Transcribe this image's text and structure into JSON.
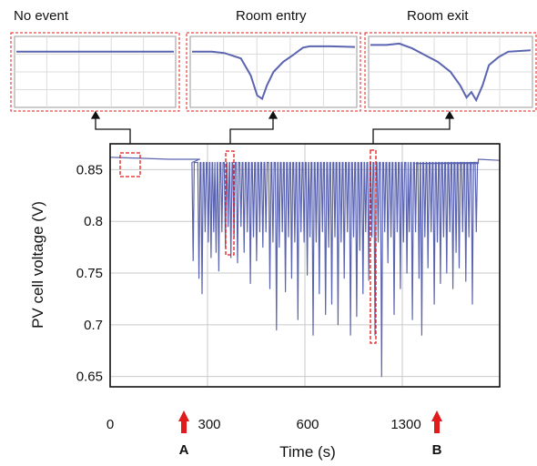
{
  "chart_data": {
    "type": "line",
    "ylabel": "PV cell voltage (V)",
    "xlabel": "Time (s)",
    "ylim": [
      0.64,
      0.875
    ],
    "y_ticks": [
      0.85,
      0.8,
      0.75,
      0.7,
      0.65
    ],
    "x_tick_labels": [
      "0",
      "300",
      "600",
      "1300"
    ],
    "grid": true,
    "color": "#5b64b0",
    "markers": [
      {
        "label": "A",
        "color": "#e01b1b"
      },
      {
        "label": "B",
        "color": "#e01b1b"
      }
    ],
    "baseline_segments": [
      {
        "t": [
          0.0,
          0.23
        ],
        "values": [
          0.862,
          0.861,
          0.86,
          0.86
        ]
      },
      {
        "t": [
          0.785,
          0.945
        ],
        "values": [
          0.856,
          0.856
        ]
      },
      {
        "t": [
          0.945,
          1.0
        ],
        "values": [
          0.86,
          0.859
        ]
      }
    ],
    "dips": [
      {
        "t": 0.213,
        "v": 0.762
      },
      {
        "t": 0.228,
        "v": 0.745
      },
      {
        "t": 0.236,
        "v": 0.73
      },
      {
        "t": 0.244,
        "v": 0.79
      },
      {
        "t": 0.252,
        "v": 0.78
      },
      {
        "t": 0.259,
        "v": 0.765
      },
      {
        "t": 0.266,
        "v": 0.79
      },
      {
        "t": 0.272,
        "v": 0.77
      },
      {
        "t": 0.279,
        "v": 0.752
      },
      {
        "t": 0.287,
        "v": 0.79
      },
      {
        "t": 0.296,
        "v": 0.775
      },
      {
        "t": 0.303,
        "v": 0.795
      },
      {
        "t": 0.31,
        "v": 0.765
      },
      {
        "t": 0.318,
        "v": 0.785
      },
      {
        "t": 0.327,
        "v": 0.76
      },
      {
        "t": 0.336,
        "v": 0.795
      },
      {
        "t": 0.344,
        "v": 0.77
      },
      {
        "t": 0.352,
        "v": 0.79
      },
      {
        "t": 0.36,
        "v": 0.74
      },
      {
        "t": 0.368,
        "v": 0.785
      },
      {
        "t": 0.376,
        "v": 0.762
      },
      {
        "t": 0.384,
        "v": 0.79
      },
      {
        "t": 0.392,
        "v": 0.775
      },
      {
        "t": 0.4,
        "v": 0.79
      },
      {
        "t": 0.41,
        "v": 0.735
      },
      {
        "t": 0.418,
        "v": 0.78
      },
      {
        "t": 0.427,
        "v": 0.695
      },
      {
        "t": 0.434,
        "v": 0.775
      },
      {
        "t": 0.442,
        "v": 0.79
      },
      {
        "t": 0.45,
        "v": 0.732
      },
      {
        "t": 0.458,
        "v": 0.785
      },
      {
        "t": 0.466,
        "v": 0.745
      },
      {
        "t": 0.474,
        "v": 0.78
      },
      {
        "t": 0.482,
        "v": 0.705
      },
      {
        "t": 0.49,
        "v": 0.79
      },
      {
        "t": 0.498,
        "v": 0.78
      },
      {
        "t": 0.506,
        "v": 0.748
      },
      {
        "t": 0.513,
        "v": 0.785
      },
      {
        "t": 0.521,
        "v": 0.69
      },
      {
        "t": 0.529,
        "v": 0.78
      },
      {
        "t": 0.537,
        "v": 0.73
      },
      {
        "t": 0.545,
        "v": 0.79
      },
      {
        "t": 0.553,
        "v": 0.71
      },
      {
        "t": 0.561,
        "v": 0.775
      },
      {
        "t": 0.569,
        "v": 0.72
      },
      {
        "t": 0.577,
        "v": 0.785
      },
      {
        "t": 0.585,
        "v": 0.7
      },
      {
        "t": 0.593,
        "v": 0.78
      },
      {
        "t": 0.601,
        "v": 0.745
      },
      {
        "t": 0.609,
        "v": 0.79
      },
      {
        "t": 0.617,
        "v": 0.69
      },
      {
        "t": 0.625,
        "v": 0.785
      },
      {
        "t": 0.633,
        "v": 0.708
      },
      {
        "t": 0.641,
        "v": 0.772
      },
      {
        "t": 0.649,
        "v": 0.73
      },
      {
        "t": 0.656,
        "v": 0.79
      },
      {
        "t": 0.664,
        "v": 0.743
      },
      {
        "t": 0.672,
        "v": 0.785
      },
      {
        "t": 0.68,
        "v": 0.69
      },
      {
        "t": 0.688,
        "v": 0.78
      },
      {
        "t": 0.697,
        "v": 0.65
      },
      {
        "t": 0.705,
        "v": 0.79
      },
      {
        "t": 0.713,
        "v": 0.76
      },
      {
        "t": 0.721,
        "v": 0.785
      },
      {
        "t": 0.729,
        "v": 0.71
      },
      {
        "t": 0.737,
        "v": 0.79
      },
      {
        "t": 0.745,
        "v": 0.735
      },
      {
        "t": 0.753,
        "v": 0.78
      },
      {
        "t": 0.762,
        "v": 0.75
      },
      {
        "t": 0.768,
        "v": 0.79
      },
      {
        "t": 0.776,
        "v": 0.705
      },
      {
        "t": 0.784,
        "v": 0.79
      },
      {
        "t": 0.793,
        "v": 0.745
      },
      {
        "t": 0.8,
        "v": 0.69
      },
      {
        "t": 0.808,
        "v": 0.785
      },
      {
        "t": 0.816,
        "v": 0.755
      },
      {
        "t": 0.824,
        "v": 0.79
      },
      {
        "t": 0.832,
        "v": 0.72
      },
      {
        "t": 0.84,
        "v": 0.78
      },
      {
        "t": 0.848,
        "v": 0.74
      },
      {
        "t": 0.856,
        "v": 0.785
      },
      {
        "t": 0.864,
        "v": 0.75
      },
      {
        "t": 0.872,
        "v": 0.79
      },
      {
        "t": 0.88,
        "v": 0.735
      },
      {
        "t": 0.888,
        "v": 0.77
      },
      {
        "t": 0.896,
        "v": 0.755
      },
      {
        "t": 0.905,
        "v": 0.79
      },
      {
        "t": 0.913,
        "v": 0.742
      },
      {
        "t": 0.921,
        "v": 0.785
      },
      {
        "t": 0.93,
        "v": 0.72
      },
      {
        "t": 0.94,
        "v": 0.79
      }
    ],
    "insets": [
      {
        "title": "No event",
        "curve": [
          [
            0,
            0.2
          ],
          [
            1,
            0.2
          ]
        ]
      },
      {
        "title": "Room entry",
        "curve": [
          [
            0,
            0.2
          ],
          [
            0.12,
            0.2
          ],
          [
            0.2,
            0.22
          ],
          [
            0.3,
            0.3
          ],
          [
            0.36,
            0.55
          ],
          [
            0.4,
            0.85
          ],
          [
            0.43,
            0.9
          ],
          [
            0.46,
            0.7
          ],
          [
            0.5,
            0.5
          ],
          [
            0.56,
            0.35
          ],
          [
            0.62,
            0.25
          ],
          [
            0.68,
            0.14
          ],
          [
            0.72,
            0.12
          ],
          [
            0.85,
            0.12
          ],
          [
            1,
            0.13
          ]
        ]
      },
      {
        "title": "Room exit",
        "curve": [
          [
            0,
            0.1
          ],
          [
            0.1,
            0.1
          ],
          [
            0.18,
            0.08
          ],
          [
            0.26,
            0.15
          ],
          [
            0.34,
            0.25
          ],
          [
            0.42,
            0.35
          ],
          [
            0.5,
            0.5
          ],
          [
            0.56,
            0.7
          ],
          [
            0.6,
            0.88
          ],
          [
            0.63,
            0.8
          ],
          [
            0.66,
            0.92
          ],
          [
            0.7,
            0.7
          ],
          [
            0.74,
            0.4
          ],
          [
            0.8,
            0.28
          ],
          [
            0.86,
            0.2
          ],
          [
            1,
            0.18
          ]
        ]
      }
    ]
  }
}
